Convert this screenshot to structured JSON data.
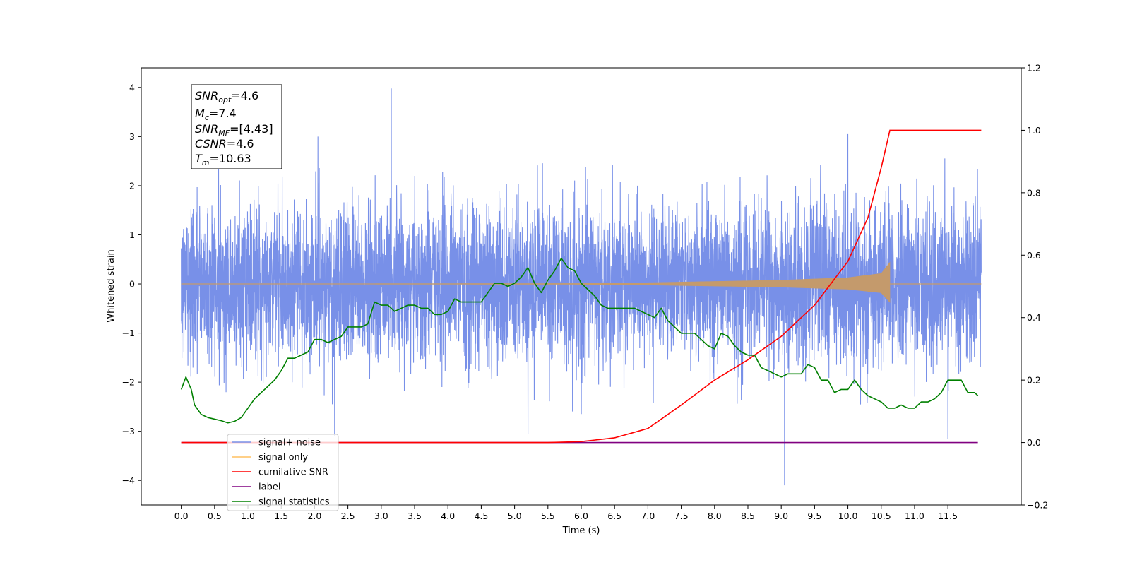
{
  "chart_data": {
    "type": "line",
    "xlabel": "Time (s)",
    "ylabel_left": "Whitened strain",
    "ylabel_right": "",
    "xlim": [
      -0.6,
      12.6
    ],
    "ylim_left": [
      -4.5,
      4.4
    ],
    "ylim_right": [
      -0.2,
      1.2
    ],
    "x_ticks": [
      "0.0",
      "0.5",
      "1.0",
      "1.5",
      "2.0",
      "2.5",
      "3.0",
      "3.5",
      "4.0",
      "4.5",
      "5.0",
      "5.5",
      "6.0",
      "6.5",
      "7.0",
      "7.5",
      "8.0",
      "8.5",
      "9.0",
      "9.5",
      "10.0",
      "10.5",
      "11.0",
      "11.5"
    ],
    "y_ticks_left": [
      "4",
      "3",
      "2",
      "1",
      "0",
      "−1",
      "−2",
      "−3",
      "−4"
    ],
    "y_ticks_right": [
      "1.2",
      "1.0",
      "0.8",
      "0.6",
      "0.4",
      "0.2",
      "0.0",
      "−0.2"
    ],
    "grid": false,
    "legend_position": "lower-left",
    "annotation": {
      "lines": [
        {
          "var": "SNR",
          "sub": "opt",
          "value": "=4.6"
        },
        {
          "var": "M",
          "sub": "c",
          "value": "=7.4"
        },
        {
          "var": "SNR",
          "sub": "MF",
          "value": "=[4.43]"
        },
        {
          "var": "CSNR",
          "sub": "",
          "value": "=4.6"
        },
        {
          "var": "T",
          "sub": "m",
          "value": "=10.63"
        }
      ]
    },
    "series": [
      {
        "name": "signal+ noise",
        "axis": "left",
        "color": "#7890e8",
        "style": "dense-noise",
        "x_range": [
          0.0,
          12.0
        ],
        "envelope": [
          -1.6,
          1.6
        ],
        "typical_peaks": [
          -2.2,
          2.3
        ],
        "notable_spikes": [
          [
            3.15,
            3.98
          ],
          [
            2.3,
            -3.1
          ],
          [
            9.05,
            -4.1
          ],
          [
            11.5,
            -3.15
          ],
          [
            10.0,
            3.05
          ],
          [
            2.05,
            3.0
          ],
          [
            5.2,
            -3.05
          ]
        ]
      },
      {
        "name": "signal only",
        "axis": "left",
        "color": "#c49a6c",
        "legend_color": "#ffc060",
        "style": "chirp",
        "x_range": [
          0.0,
          10.63
        ],
        "amplitude_points": [
          [
            0.0,
            0.0
          ],
          [
            6.0,
            0.01
          ],
          [
            7.0,
            0.03
          ],
          [
            8.0,
            0.06
          ],
          [
            9.0,
            0.09
          ],
          [
            10.0,
            0.15
          ],
          [
            10.5,
            0.25
          ],
          [
            10.63,
            0.52
          ]
        ]
      },
      {
        "name": "cumilative SNR",
        "axis": "right",
        "color": "#ff0000",
        "x": [
          0.0,
          5.5,
          6.0,
          6.5,
          7.0,
          7.5,
          8.0,
          8.5,
          9.0,
          9.5,
          10.0,
          10.3,
          10.5,
          10.63,
          12.0
        ],
        "values": [
          0.0,
          0.0,
          0.003,
          0.015,
          0.045,
          0.12,
          0.2,
          0.265,
          0.34,
          0.44,
          0.58,
          0.72,
          0.88,
          1.0,
          1.0
        ]
      },
      {
        "name": "label",
        "axis": "right",
        "color": "#800080",
        "x": [
          0.0,
          11.95
        ],
        "values": [
          0.0,
          0.0
        ]
      },
      {
        "name": "signal statistics",
        "axis": "right",
        "color": "#008000",
        "x": [
          0.0,
          0.07,
          0.15,
          0.2,
          0.3,
          0.4,
          0.5,
          0.6,
          0.7,
          0.8,
          0.9,
          1.0,
          1.1,
          1.2,
          1.3,
          1.4,
          1.5,
          1.6,
          1.7,
          1.8,
          1.9,
          2.0,
          2.1,
          2.2,
          2.3,
          2.4,
          2.5,
          2.6,
          2.7,
          2.8,
          2.9,
          3.0,
          3.1,
          3.2,
          3.3,
          3.4,
          3.5,
          3.6,
          3.7,
          3.8,
          3.9,
          4.0,
          4.1,
          4.2,
          4.3,
          4.4,
          4.5,
          4.6,
          4.7,
          4.8,
          4.9,
          5.0,
          5.1,
          5.2,
          5.3,
          5.4,
          5.5,
          5.6,
          5.7,
          5.8,
          5.9,
          6.0,
          6.1,
          6.2,
          6.3,
          6.4,
          6.5,
          6.6,
          6.7,
          6.8,
          6.9,
          7.0,
          7.1,
          7.2,
          7.3,
          7.4,
          7.5,
          7.6,
          7.7,
          7.8,
          7.9,
          8.0,
          8.1,
          8.2,
          8.3,
          8.4,
          8.5,
          8.6,
          8.7,
          8.8,
          8.9,
          9.0,
          9.1,
          9.2,
          9.3,
          9.4,
          9.5,
          9.6,
          9.7,
          9.8,
          9.9,
          10.0,
          10.1,
          10.2,
          10.3,
          10.4,
          10.5,
          10.6,
          10.7,
          10.8,
          10.9,
          11.0,
          11.1,
          11.2,
          11.3,
          11.4,
          11.5,
          11.6,
          11.7,
          11.8,
          11.9,
          11.95
        ],
        "values": [
          0.17,
          0.21,
          0.17,
          0.12,
          0.09,
          0.08,
          0.075,
          0.07,
          0.063,
          0.068,
          0.08,
          0.11,
          0.14,
          0.16,
          0.18,
          0.2,
          0.23,
          0.27,
          0.27,
          0.28,
          0.29,
          0.33,
          0.33,
          0.32,
          0.33,
          0.34,
          0.37,
          0.37,
          0.37,
          0.38,
          0.45,
          0.44,
          0.44,
          0.42,
          0.43,
          0.44,
          0.44,
          0.43,
          0.43,
          0.41,
          0.41,
          0.42,
          0.46,
          0.45,
          0.45,
          0.45,
          0.45,
          0.48,
          0.51,
          0.51,
          0.5,
          0.51,
          0.53,
          0.56,
          0.51,
          0.48,
          0.52,
          0.55,
          0.59,
          0.56,
          0.55,
          0.51,
          0.49,
          0.47,
          0.44,
          0.43,
          0.43,
          0.43,
          0.43,
          0.43,
          0.42,
          0.41,
          0.4,
          0.43,
          0.39,
          0.37,
          0.35,
          0.35,
          0.35,
          0.33,
          0.31,
          0.3,
          0.35,
          0.34,
          0.31,
          0.29,
          0.28,
          0.28,
          0.24,
          0.23,
          0.22,
          0.21,
          0.22,
          0.22,
          0.22,
          0.25,
          0.24,
          0.2,
          0.2,
          0.16,
          0.17,
          0.17,
          0.2,
          0.17,
          0.15,
          0.14,
          0.13,
          0.11,
          0.11,
          0.12,
          0.11,
          0.11,
          0.13,
          0.13,
          0.14,
          0.16,
          0.2,
          0.2,
          0.2,
          0.16,
          0.16,
          0.15
        ]
      }
    ]
  }
}
